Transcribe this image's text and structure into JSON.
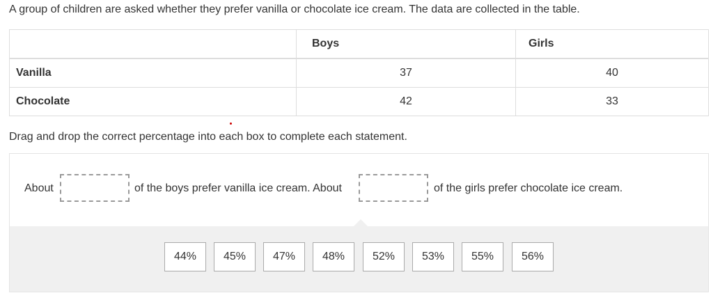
{
  "question": "A group of children are asked whether they prefer vanilla or chocolate ice cream. The data are collected in the table.",
  "table": {
    "headers": [
      "",
      "Boys",
      "Girls"
    ],
    "rows": [
      {
        "label": "Vanilla",
        "boys": "37",
        "girls": "40"
      },
      {
        "label": "Chocolate",
        "boys": "42",
        "girls": "33"
      }
    ]
  },
  "instruction": "Drag and drop the correct percentage into each box to complete each statement.",
  "statement": {
    "part1": "About",
    "part2": "of the boys prefer vanilla ice cream. About",
    "part3": "of the girls prefer chocolate ice cream.",
    "box1": "",
    "box2": ""
  },
  "options": [
    "44%",
    "45%",
    "47%",
    "48%",
    "52%",
    "53%",
    "55%",
    "56%"
  ]
}
